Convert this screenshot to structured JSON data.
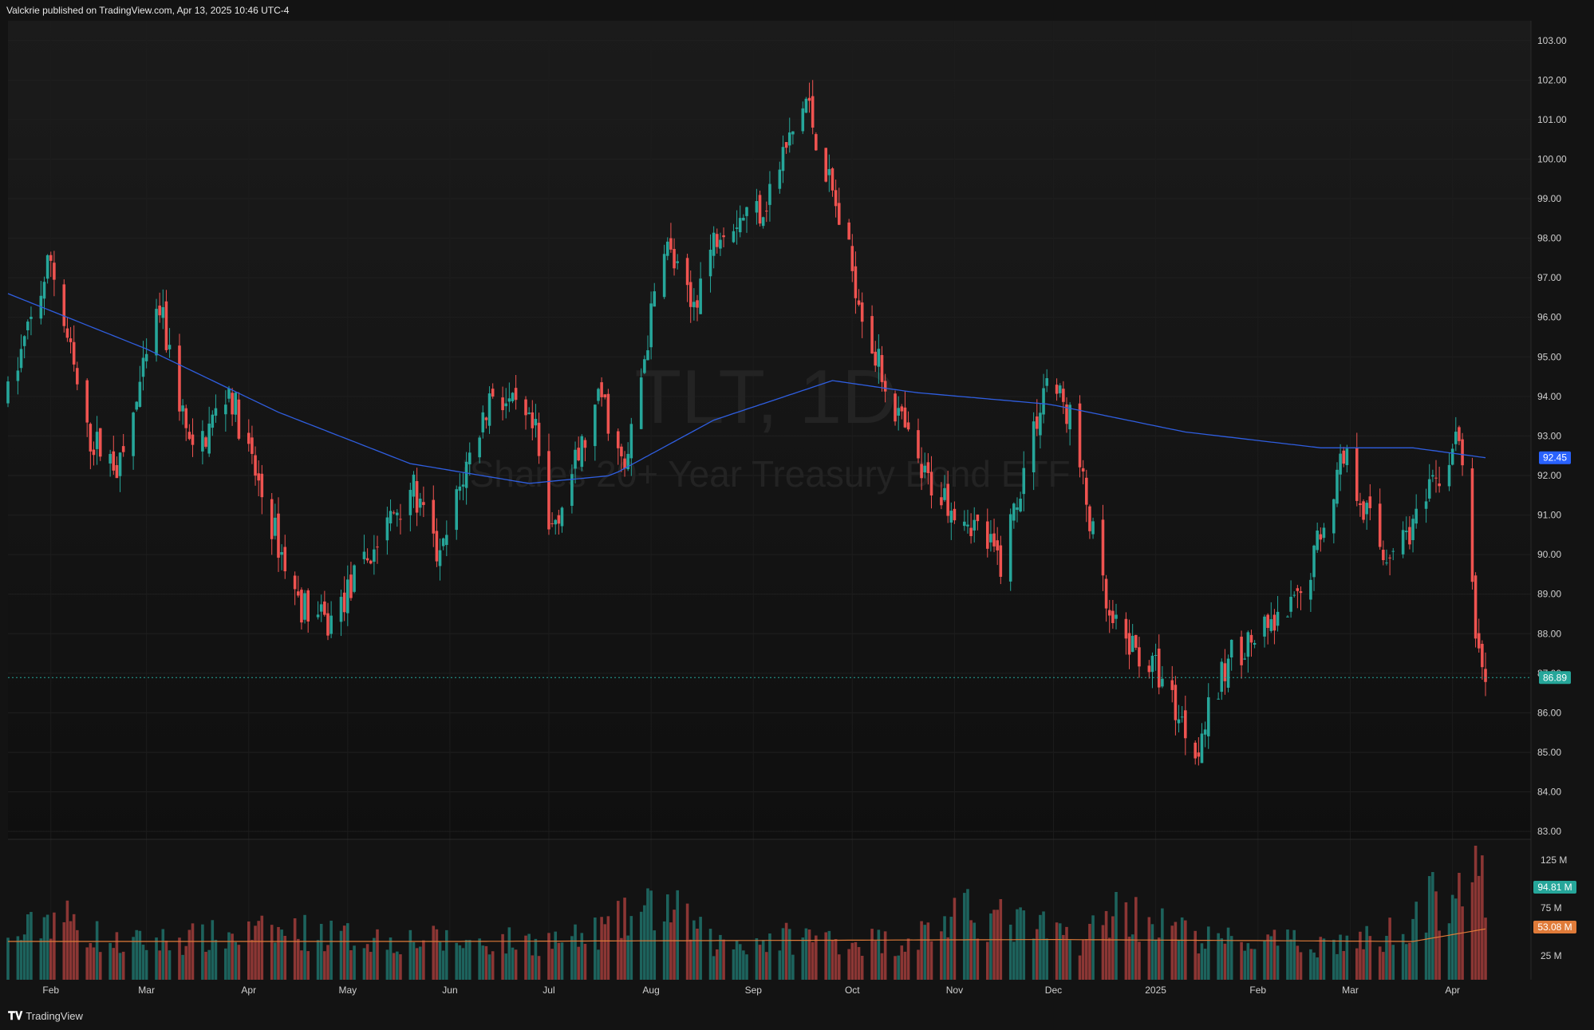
{
  "header": {
    "publisher_line": "Valckrie published on TradingView.com, Apr 13, 2025 10:46 UTC-4"
  },
  "watermark": {
    "symbol": "TLT, 1D",
    "name": "iShares 20+ Year Treasury Bond ETF"
  },
  "footer": {
    "logo_icon": "tradingview-logo-icon",
    "brand": "TradingView"
  },
  "colors": {
    "up": "#26a69a",
    "down": "#ef5350",
    "ma": "#2f5ee0",
    "vol_ma": "#e07b39",
    "bg": "#131313"
  },
  "chart_data": [
    {
      "type": "candlestick",
      "symbol": "TLT",
      "interval": "1D",
      "y_axis_ticks": [
        "103.00",
        "102.00",
        "101.00",
        "100.00",
        "99.00",
        "98.00",
        "97.00",
        "96.00",
        "95.00",
        "94.00",
        "93.00",
        "92.00",
        "91.00",
        "90.00",
        "89.00",
        "88.00",
        "87.00",
        "86.00",
        "85.00",
        "84.00",
        "83.00"
      ],
      "ylim": [
        82.8,
        103.5
      ],
      "x_axis_labels": [
        "Feb",
        "Mar",
        "Apr",
        "May",
        "Jun",
        "Jul",
        "Aug",
        "Sep",
        "Oct",
        "Nov",
        "Dec",
        "2025",
        "Feb",
        "Mar",
        "Apr"
      ],
      "x_range": [
        "2024-01-19",
        "2025-04-11"
      ],
      "last_price": "86.89",
      "ma_value": "92.45",
      "close_path": [
        {
          "date": "2024-01-19",
          "close": 94.0
        },
        {
          "date": "2024-02-01",
          "close": 97.5
        },
        {
          "date": "2024-02-12",
          "close": 93.0
        },
        {
          "date": "2024-02-22",
          "close": 92.2
        },
        {
          "date": "2024-03-05",
          "close": 96.2
        },
        {
          "date": "2024-03-15",
          "close": 92.4
        },
        {
          "date": "2024-03-26",
          "close": 94.2
        },
        {
          "date": "2024-04-03",
          "close": 92.0
        },
        {
          "date": "2024-04-16",
          "close": 88.8
        },
        {
          "date": "2024-04-25",
          "close": 88.2
        },
        {
          "date": "2024-05-10",
          "close": 90.3
        },
        {
          "date": "2024-05-20",
          "close": 91.8
        },
        {
          "date": "2024-05-29",
          "close": 89.8
        },
        {
          "date": "2024-06-05",
          "close": 92.0
        },
        {
          "date": "2024-06-14",
          "close": 94.2
        },
        {
          "date": "2024-06-27",
          "close": 93.0
        },
        {
          "date": "2024-07-01",
          "close": 90.5
        },
        {
          "date": "2024-07-17",
          "close": 94.0
        },
        {
          "date": "2024-07-24",
          "close": 92.0
        },
        {
          "date": "2024-08-05",
          "close": 98.0
        },
        {
          "date": "2024-08-13",
          "close": 96.2
        },
        {
          "date": "2024-08-22",
          "close": 98.4
        },
        {
          "date": "2024-09-04",
          "close": 98.8
        },
        {
          "date": "2024-09-17",
          "close": 101.5
        },
        {
          "date": "2024-09-26",
          "close": 98.8
        },
        {
          "date": "2024-10-08",
          "close": 95.0
        },
        {
          "date": "2024-10-22",
          "close": 92.0
        },
        {
          "date": "2024-11-05",
          "close": 91.0
        },
        {
          "date": "2024-11-15",
          "close": 89.8
        },
        {
          "date": "2024-11-29",
          "close": 94.5
        },
        {
          "date": "2024-12-06",
          "close": 93.5
        },
        {
          "date": "2024-12-18",
          "close": 88.2
        },
        {
          "date": "2025-01-02",
          "close": 87.0
        },
        {
          "date": "2025-01-13",
          "close": 85.1
        },
        {
          "date": "2025-01-24",
          "close": 87.5
        },
        {
          "date": "2025-02-07",
          "close": 88.2
        },
        {
          "date": "2025-02-14",
          "close": 88.9
        },
        {
          "date": "2025-02-27",
          "close": 92.6
        },
        {
          "date": "2025-03-11",
          "close": 90.0
        },
        {
          "date": "2025-03-21",
          "close": 90.8
        },
        {
          "date": "2025-04-03",
          "close": 93.0
        },
        {
          "date": "2025-04-08",
          "close": 88.0
        },
        {
          "date": "2025-04-11",
          "close": 86.89
        }
      ],
      "moving_average": [
        {
          "date": "2024-01-19",
          "value": 96.6
        },
        {
          "date": "2024-03-01",
          "value": 95.2
        },
        {
          "date": "2024-04-10",
          "value": 93.6
        },
        {
          "date": "2024-05-20",
          "value": 92.3
        },
        {
          "date": "2024-06-25",
          "value": 91.8
        },
        {
          "date": "2024-07-20",
          "value": 92.0
        },
        {
          "date": "2024-08-20",
          "value": 93.4
        },
        {
          "date": "2024-09-25",
          "value": 94.4
        },
        {
          "date": "2024-10-20",
          "value": 94.1
        },
        {
          "date": "2024-11-30",
          "value": 93.8
        },
        {
          "date": "2025-01-10",
          "value": 93.1
        },
        {
          "date": "2025-02-20",
          "value": 92.7
        },
        {
          "date": "2025-03-20",
          "value": 92.7
        },
        {
          "date": "2025-04-11",
          "value": 92.45
        }
      ]
    },
    {
      "type": "bar",
      "name": "Volume",
      "y_axis_ticks": [
        "125 M",
        "75 M",
        "25 M"
      ],
      "last_volume": "94.81 M",
      "volume_ma": "53.08 M",
      "ylim_millions": [
        0,
        140
      ],
      "volume_path_millions": [
        {
          "date": "2024-01-19",
          "value": 40
        },
        {
          "date": "2024-02-02",
          "value": 75
        },
        {
          "date": "2024-02-20",
          "value": 40
        },
        {
          "date": "2024-03-10",
          "value": 45
        },
        {
          "date": "2024-04-15",
          "value": 55
        },
        {
          "date": "2024-05-01",
          "value": 48
        },
        {
          "date": "2024-06-10",
          "value": 42
        },
        {
          "date": "2024-07-10",
          "value": 45
        },
        {
          "date": "2024-08-05",
          "value": 85
        },
        {
          "date": "2024-08-20",
          "value": 40
        },
        {
          "date": "2024-09-15",
          "value": 48
        },
        {
          "date": "2024-10-15",
          "value": 42
        },
        {
          "date": "2024-11-06",
          "value": 75
        },
        {
          "date": "2024-12-10",
          "value": 45
        },
        {
          "date": "2024-12-20",
          "value": 80
        },
        {
          "date": "2025-01-15",
          "value": 45
        },
        {
          "date": "2025-02-15",
          "value": 40
        },
        {
          "date": "2025-03-10",
          "value": 45
        },
        {
          "date": "2025-04-07",
          "value": 120
        },
        {
          "date": "2025-04-11",
          "value": 94.81
        }
      ],
      "volume_ma_path_millions": [
        {
          "date": "2024-01-19",
          "value": 40
        },
        {
          "date": "2024-06-01",
          "value": 40
        },
        {
          "date": "2024-12-01",
          "value": 42
        },
        {
          "date": "2025-03-20",
          "value": 40
        },
        {
          "date": "2025-04-11",
          "value": 53.08
        }
      ]
    }
  ]
}
